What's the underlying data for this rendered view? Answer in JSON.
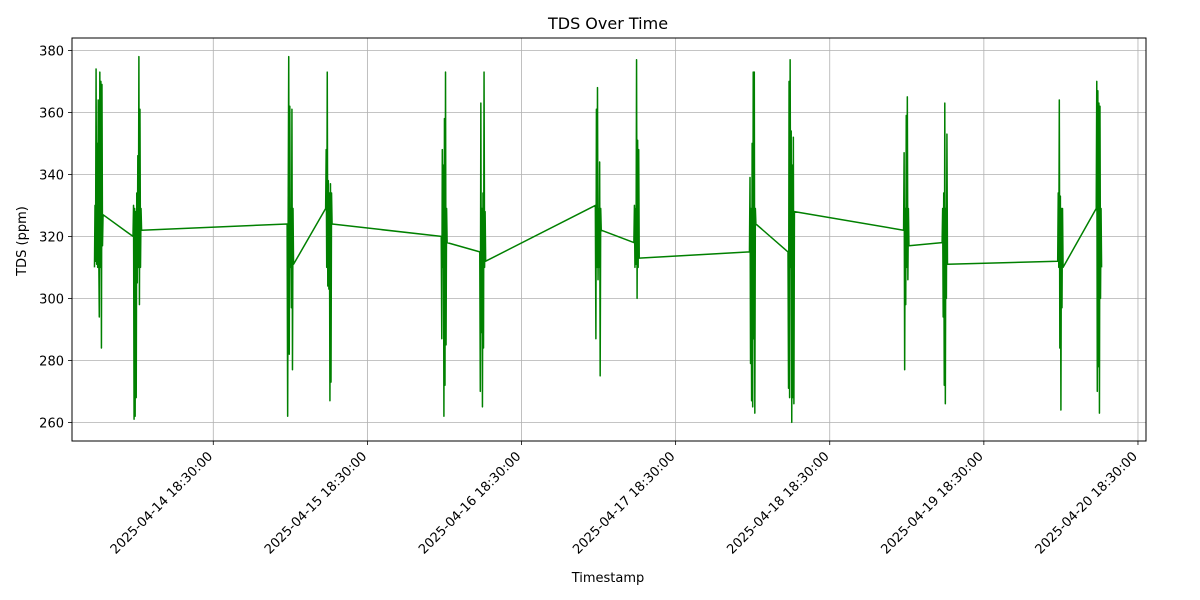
{
  "chart_data": {
    "type": "line",
    "title": "TDS Over Time",
    "xlabel": "Timestamp",
    "ylabel": "TDS (ppm)",
    "ylim": [
      254,
      384
    ],
    "xlim": [
      "2025-04-13 20:30:00",
      "2025-04-20 19:45:00"
    ],
    "grid": true,
    "line_color": "#008000",
    "y_ticks": [
      260,
      280,
      300,
      320,
      340,
      360,
      380
    ],
    "x_ticks": [
      "2025-04-14 18:30:00",
      "2025-04-15 18:30:00",
      "2025-04-16 18:30:00",
      "2025-04-17 18:30:00",
      "2025-04-18 18:30:00",
      "2025-04-19 18:30:00",
      "2025-04-20 18:30:00"
    ],
    "series": [
      {
        "values": [
          {
            "x": "2025-04-14 00:00:00",
            "y": 310
          },
          {
            "x": "2025-04-14 00:05:00",
            "y": 330
          },
          {
            "x": "2025-04-14 00:10:00",
            "y": 312
          },
          {
            "x": "2025-04-14 00:15:00",
            "y": 374
          },
          {
            "x": "2025-04-14 00:20:00",
            "y": 311
          },
          {
            "x": "2025-04-14 00:25:00",
            "y": 350
          },
          {
            "x": "2025-04-14 00:30:00",
            "y": 310
          },
          {
            "x": "2025-04-14 00:35:00",
            "y": 364
          },
          {
            "x": "2025-04-14 00:40:00",
            "y": 315
          },
          {
            "x": "2025-04-14 00:45:00",
            "y": 294
          },
          {
            "x": "2025-04-14 00:50:00",
            "y": 373
          },
          {
            "x": "2025-04-14 00:55:00",
            "y": 310
          },
          {
            "x": "2025-04-14 01:00:00",
            "y": 370
          },
          {
            "x": "2025-04-14 01:05:00",
            "y": 284
          },
          {
            "x": "2025-04-14 01:10:00",
            "y": 369
          },
          {
            "x": "2025-04-14 01:15:00",
            "y": 317
          },
          {
            "x": "2025-04-14 01:20:00",
            "y": 327
          },
          {
            "x": "2025-04-14 06:00:00",
            "y": 320
          },
          {
            "x": "2025-04-14 06:05:00",
            "y": 330
          },
          {
            "x": "2025-04-14 06:10:00",
            "y": 261
          },
          {
            "x": "2025-04-14 06:15:00",
            "y": 329
          },
          {
            "x": "2025-04-14 06:20:00",
            "y": 262
          },
          {
            "x": "2025-04-14 06:25:00",
            "y": 328
          },
          {
            "x": "2025-04-14 06:30:00",
            "y": 268
          },
          {
            "x": "2025-04-14 06:35:00",
            "y": 334
          },
          {
            "x": "2025-04-14 06:40:00",
            "y": 305
          },
          {
            "x": "2025-04-14 06:45:00",
            "y": 346
          },
          {
            "x": "2025-04-14 06:50:00",
            "y": 310
          },
          {
            "x": "2025-04-14 06:55:00",
            "y": 378
          },
          {
            "x": "2025-04-14 07:00:00",
            "y": 298
          },
          {
            "x": "2025-04-14 07:05:00",
            "y": 361
          },
          {
            "x": "2025-04-14 07:10:00",
            "y": 310
          },
          {
            "x": "2025-04-14 07:15:00",
            "y": 329
          },
          {
            "x": "2025-04-14 07:20:00",
            "y": 322
          },
          {
            "x": "2025-04-15 06:00:00",
            "y": 324
          },
          {
            "x": "2025-04-15 06:05:00",
            "y": 262
          },
          {
            "x": "2025-04-15 06:10:00",
            "y": 329
          },
          {
            "x": "2025-04-15 06:15:00",
            "y": 378
          },
          {
            "x": "2025-04-15 06:20:00",
            "y": 282
          },
          {
            "x": "2025-04-15 06:25:00",
            "y": 362
          },
          {
            "x": "2025-04-15 06:30:00",
            "y": 310
          },
          {
            "x": "2025-04-15 06:35:00",
            "y": 329
          },
          {
            "x": "2025-04-15 06:40:00",
            "y": 297
          },
          {
            "x": "2025-04-15 06:45:00",
            "y": 361
          },
          {
            "x": "2025-04-15 06:50:00",
            "y": 277
          },
          {
            "x": "2025-04-15 06:55:00",
            "y": 329
          },
          {
            "x": "2025-04-15 07:00:00",
            "y": 311
          },
          {
            "x": "2025-04-15 12:00:00",
            "y": 329
          },
          {
            "x": "2025-04-15 12:05:00",
            "y": 348
          },
          {
            "x": "2025-04-15 12:10:00",
            "y": 310
          },
          {
            "x": "2025-04-15 12:15:00",
            "y": 373
          },
          {
            "x": "2025-04-15 12:20:00",
            "y": 304
          },
          {
            "x": "2025-04-15 12:25:00",
            "y": 338
          },
          {
            "x": "2025-04-15 12:30:00",
            "y": 303
          },
          {
            "x": "2025-04-15 12:35:00",
            "y": 334
          },
          {
            "x": "2025-04-15 12:40:00",
            "y": 267
          },
          {
            "x": "2025-04-15 12:45:00",
            "y": 337
          },
          {
            "x": "2025-04-15 12:50:00",
            "y": 273
          },
          {
            "x": "2025-04-15 12:55:00",
            "y": 334
          },
          {
            "x": "2025-04-15 13:00:00",
            "y": 324
          },
          {
            "x": "2025-04-16 06:00:00",
            "y": 320
          },
          {
            "x": "2025-04-16 06:05:00",
            "y": 287
          },
          {
            "x": "2025-04-16 06:10:00",
            "y": 348
          },
          {
            "x": "2025-04-16 06:15:00",
            "y": 310
          },
          {
            "x": "2025-04-16 06:20:00",
            "y": 343
          },
          {
            "x": "2025-04-16 06:25:00",
            "y": 262
          },
          {
            "x": "2025-04-16 06:30:00",
            "y": 358
          },
          {
            "x": "2025-04-16 06:35:00",
            "y": 272
          },
          {
            "x": "2025-04-16 06:40:00",
            "y": 373
          },
          {
            "x": "2025-04-16 06:45:00",
            "y": 285
          },
          {
            "x": "2025-04-16 06:50:00",
            "y": 329
          },
          {
            "x": "2025-04-16 06:55:00",
            "y": 318
          },
          {
            "x": "2025-04-16 12:00:00",
            "y": 315
          },
          {
            "x": "2025-04-16 12:05:00",
            "y": 270
          },
          {
            "x": "2025-04-16 12:10:00",
            "y": 363
          },
          {
            "x": "2025-04-16 12:15:00",
            "y": 289
          },
          {
            "x": "2025-04-16 12:20:00",
            "y": 329
          },
          {
            "x": "2025-04-16 12:25:00",
            "y": 265
          },
          {
            "x": "2025-04-16 12:30:00",
            "y": 334
          },
          {
            "x": "2025-04-16 12:35:00",
            "y": 284
          },
          {
            "x": "2025-04-16 12:40:00",
            "y": 373
          },
          {
            "x": "2025-04-16 12:45:00",
            "y": 310
          },
          {
            "x": "2025-04-16 12:50:00",
            "y": 328
          },
          {
            "x": "2025-04-16 12:55:00",
            "y": 312
          },
          {
            "x": "2025-04-17 06:00:00",
            "y": 330
          },
          {
            "x": "2025-04-17 06:05:00",
            "y": 287
          },
          {
            "x": "2025-04-17 06:10:00",
            "y": 361
          },
          {
            "x": "2025-04-17 06:15:00",
            "y": 310
          },
          {
            "x": "2025-04-17 06:20:00",
            "y": 368
          },
          {
            "x": "2025-04-17 06:25:00",
            "y": 306
          },
          {
            "x": "2025-04-17 06:30:00",
            "y": 329
          },
          {
            "x": "2025-04-17 06:35:00",
            "y": 310
          },
          {
            "x": "2025-04-17 06:40:00",
            "y": 344
          },
          {
            "x": "2025-04-17 06:45:00",
            "y": 275
          },
          {
            "x": "2025-04-17 06:50:00",
            "y": 329
          },
          {
            "x": "2025-04-17 06:55:00",
            "y": 322
          },
          {
            "x": "2025-04-17 12:00:00",
            "y": 318
          },
          {
            "x": "2025-04-17 12:05:00",
            "y": 330
          },
          {
            "x": "2025-04-17 12:10:00",
            "y": 310
          },
          {
            "x": "2025-04-17 12:15:00",
            "y": 329
          },
          {
            "x": "2025-04-17 12:20:00",
            "y": 311
          },
          {
            "x": "2025-04-17 12:25:00",
            "y": 377
          },
          {
            "x": "2025-04-17 12:30:00",
            "y": 300
          },
          {
            "x": "2025-04-17 12:35:00",
            "y": 351
          },
          {
            "x": "2025-04-17 12:40:00",
            "y": 310
          },
          {
            "x": "2025-04-17 12:45:00",
            "y": 348
          },
          {
            "x": "2025-04-17 12:50:00",
            "y": 313
          },
          {
            "x": "2025-04-18 06:00:00",
            "y": 315
          },
          {
            "x": "2025-04-18 06:05:00",
            "y": 339
          },
          {
            "x": "2025-04-18 06:10:00",
            "y": 279
          },
          {
            "x": "2025-04-18 06:15:00",
            "y": 329
          },
          {
            "x": "2025-04-18 06:20:00",
            "y": 267
          },
          {
            "x": "2025-04-18 06:25:00",
            "y": 350
          },
          {
            "x": "2025-04-18 06:30:00",
            "y": 265
          },
          {
            "x": "2025-04-18 06:35:00",
            "y": 373
          },
          {
            "x": "2025-04-18 06:40:00",
            "y": 287
          },
          {
            "x": "2025-04-18 06:45:00",
            "y": 373
          },
          {
            "x": "2025-04-18 06:50:00",
            "y": 263
          },
          {
            "x": "2025-04-18 06:55:00",
            "y": 329
          },
          {
            "x": "2025-04-18 07:00:00",
            "y": 324
          },
          {
            "x": "2025-04-18 12:00:00",
            "y": 315
          },
          {
            "x": "2025-04-18 12:05:00",
            "y": 271
          },
          {
            "x": "2025-04-18 12:10:00",
            "y": 370
          },
          {
            "x": "2025-04-18 12:15:00",
            "y": 268
          },
          {
            "x": "2025-04-18 12:20:00",
            "y": 377
          },
          {
            "x": "2025-04-18 12:25:00",
            "y": 310
          },
          {
            "x": "2025-04-18 12:30:00",
            "y": 354
          },
          {
            "x": "2025-04-18 12:35:00",
            "y": 260
          },
          {
            "x": "2025-04-18 12:40:00",
            "y": 343
          },
          {
            "x": "2025-04-18 12:45:00",
            "y": 268
          },
          {
            "x": "2025-04-18 12:50:00",
            "y": 352
          },
          {
            "x": "2025-04-18 12:55:00",
            "y": 266
          },
          {
            "x": "2025-04-18 13:00:00",
            "y": 328
          },
          {
            "x": "2025-04-19 06:00:00",
            "y": 322
          },
          {
            "x": "2025-04-19 06:05:00",
            "y": 347
          },
          {
            "x": "2025-04-19 06:10:00",
            "y": 277
          },
          {
            "x": "2025-04-19 06:15:00",
            "y": 329
          },
          {
            "x": "2025-04-19 06:20:00",
            "y": 298
          },
          {
            "x": "2025-04-19 06:25:00",
            "y": 359
          },
          {
            "x": "2025-04-19 06:30:00",
            "y": 310
          },
          {
            "x": "2025-04-19 06:35:00",
            "y": 365
          },
          {
            "x": "2025-04-19 06:40:00",
            "y": 306
          },
          {
            "x": "2025-04-19 06:45:00",
            "y": 329
          },
          {
            "x": "2025-04-19 06:50:00",
            "y": 317
          },
          {
            "x": "2025-04-19 12:00:00",
            "y": 318
          },
          {
            "x": "2025-04-19 12:05:00",
            "y": 329
          },
          {
            "x": "2025-04-19 12:10:00",
            "y": 294
          },
          {
            "x": "2025-04-19 12:15:00",
            "y": 334
          },
          {
            "x": "2025-04-19 12:20:00",
            "y": 272
          },
          {
            "x": "2025-04-19 12:25:00",
            "y": 363
          },
          {
            "x": "2025-04-19 12:30:00",
            "y": 266
          },
          {
            "x": "2025-04-19 12:35:00",
            "y": 329
          },
          {
            "x": "2025-04-19 12:40:00",
            "y": 300
          },
          {
            "x": "2025-04-19 12:45:00",
            "y": 353
          },
          {
            "x": "2025-04-19 12:50:00",
            "y": 311
          },
          {
            "x": "2025-04-20 06:00:00",
            "y": 312
          },
          {
            "x": "2025-04-20 06:05:00",
            "y": 334
          },
          {
            "x": "2025-04-20 06:10:00",
            "y": 310
          },
          {
            "x": "2025-04-20 06:15:00",
            "y": 364
          },
          {
            "x": "2025-04-20 06:20:00",
            "y": 284
          },
          {
            "x": "2025-04-20 06:25:00",
            "y": 333
          },
          {
            "x": "2025-04-20 06:30:00",
            "y": 264
          },
          {
            "x": "2025-04-20 06:35:00",
            "y": 329
          },
          {
            "x": "2025-04-20 06:40:00",
            "y": 297
          },
          {
            "x": "2025-04-20 06:45:00",
            "y": 329
          },
          {
            "x": "2025-04-20 06:50:00",
            "y": 310
          },
          {
            "x": "2025-04-20 12:00:00",
            "y": 329
          },
          {
            "x": "2025-04-20 12:05:00",
            "y": 370
          },
          {
            "x": "2025-04-20 12:10:00",
            "y": 270
          },
          {
            "x": "2025-04-20 12:15:00",
            "y": 367
          },
          {
            "x": "2025-04-20 12:20:00",
            "y": 278
          },
          {
            "x": "2025-04-20 12:25:00",
            "y": 363
          },
          {
            "x": "2025-04-20 12:30:00",
            "y": 263
          },
          {
            "x": "2025-04-20 12:35:00",
            "y": 362
          },
          {
            "x": "2025-04-20 12:40:00",
            "y": 300
          },
          {
            "x": "2025-04-20 12:45:00",
            "y": 329
          },
          {
            "x": "2025-04-20 12:50:00",
            "y": 310
          }
        ]
      }
    ]
  }
}
